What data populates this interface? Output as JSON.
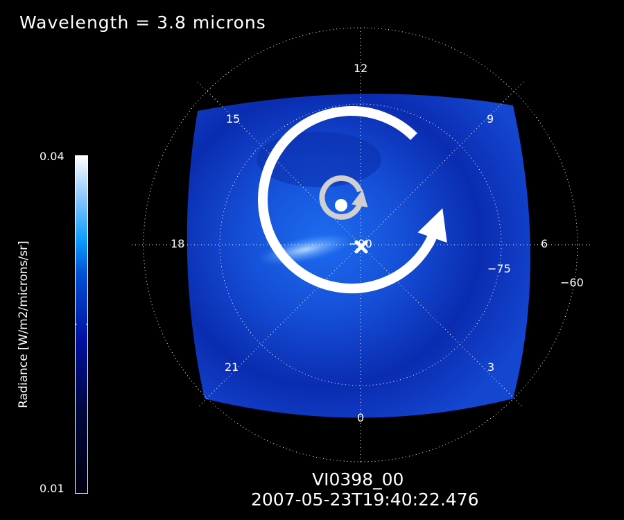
{
  "title": "Wavelength = 3.8 microns",
  "colorbar": {
    "label": "Radiance [W/m2/microns/sr]",
    "max": "0.04",
    "min": "0.01",
    "colors": [
      "#000010",
      "#0010a0",
      "#0a9cff",
      "#ffffff"
    ]
  },
  "footer": {
    "id": "VI0398_00",
    "timestamp": "2007-05-23T19:40:22.476"
  },
  "chart_data": {
    "type": "heatmap",
    "projection": "polar",
    "title": "Wavelength = 3.8 microns",
    "colorbar_label": "Radiance [W/m2/microns/sr]",
    "color_range": [
      0.01,
      0.04
    ],
    "local_time_labels": [
      "12",
      "15",
      "18",
      "21",
      "0",
      "3",
      "6",
      "9"
    ],
    "latitude_labels": [
      "-90",
      "-75",
      "-60"
    ],
    "grid": true,
    "annotations": {
      "rotation_arrows": 2,
      "pole_marker": "x",
      "vortex_center_marker": "dot"
    }
  }
}
